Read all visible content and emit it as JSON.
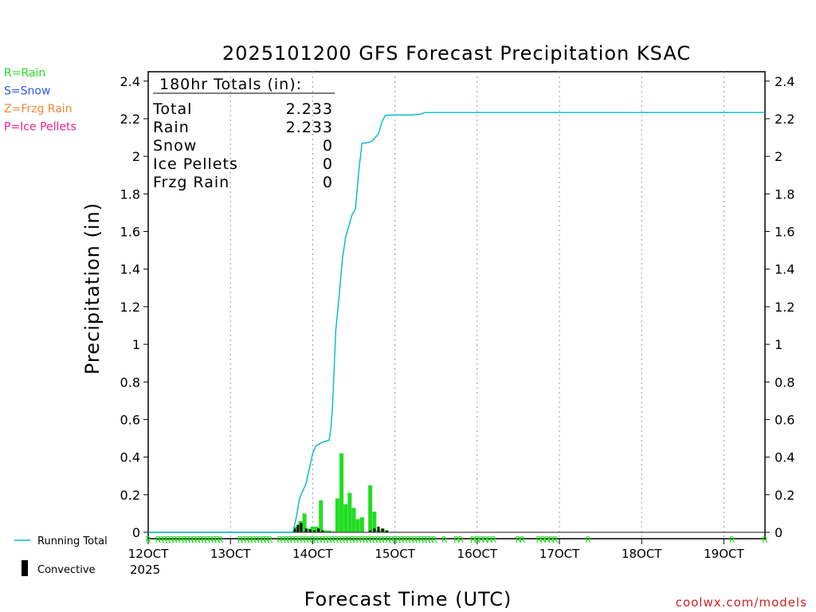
{
  "chart_data": {
    "type": "bar",
    "title": "2025101200 GFS Forecast Precipitation KSAC",
    "xlabel": "Forecast Time (UTC)",
    "ylabel": "Precipitation (in)",
    "ylim": [
      0,
      2.45
    ],
    "xlim": [
      12.0,
      19.5
    ],
    "y_ticks": [
      "0",
      "0.2",
      "0.4",
      "0.6",
      "0.8",
      "1",
      "1.2",
      "1.4",
      "1.6",
      "1.8",
      "2",
      "2.2",
      "2.4"
    ],
    "y_tick_values": [
      0,
      0.2,
      0.4,
      0.6,
      0.8,
      1.0,
      1.2,
      1.4,
      1.6,
      1.8,
      2.0,
      2.2,
      2.4
    ],
    "x_ticks": [
      "12OCT",
      "13OCT",
      "14OCT",
      "15OCT",
      "16OCT",
      "17OCT",
      "18OCT",
      "19OCT"
    ],
    "x_tick_values": [
      12,
      13,
      14,
      15,
      16,
      17,
      18,
      19
    ],
    "year_label": "2025",
    "totals_box": {
      "heading": "180hr Totals (in):",
      "rows": [
        {
          "label": "Total",
          "value": "2.233"
        },
        {
          "label": "Rain",
          "value": "2.233"
        },
        {
          "label": "Snow",
          "value": "0"
        },
        {
          "label": "Ice Pellets",
          "value": "0"
        },
        {
          "label": "Frzg Rain",
          "value": "0"
        }
      ]
    },
    "ptype_legend": [
      {
        "text": "R=Rain",
        "color": "#22dd22"
      },
      {
        "text": "S=Snow",
        "color": "#3355dd"
      },
      {
        "text": "Z=Frzg Rain",
        "color": "#ee8833"
      },
      {
        "text": "P=Ice Pellets",
        "color": "#ee2288"
      }
    ],
    "legend": [
      {
        "name": "Running Total",
        "color": "#00bbcc"
      },
      {
        "name": "Convective",
        "color": "#000000"
      }
    ],
    "watermark": "coolwx.com/models",
    "ptype_marker": "R",
    "ptype_marker_x": [
      12.0,
      12.12,
      12.16,
      12.2,
      12.24,
      12.28,
      12.32,
      12.36,
      12.4,
      12.44,
      12.48,
      12.52,
      12.56,
      12.6,
      12.64,
      12.68,
      12.72,
      12.76,
      12.8,
      12.84,
      12.88,
      13.12,
      13.16,
      13.2,
      13.24,
      13.28,
      13.32,
      13.36,
      13.4,
      13.44,
      13.48,
      13.6,
      13.64,
      13.68,
      13.72,
      13.76,
      13.8,
      13.84,
      13.88,
      13.92,
      13.96,
      14.0,
      14.04,
      14.08,
      14.12,
      14.16,
      14.2,
      14.24,
      14.28,
      14.32,
      14.36,
      14.4,
      14.44,
      14.48,
      14.52,
      14.56,
      14.6,
      14.64,
      14.68,
      14.72,
      14.76,
      14.8,
      14.84,
      14.88,
      14.92,
      14.96,
      15.0,
      15.04,
      15.08,
      15.12,
      15.16,
      15.2,
      15.24,
      15.28,
      15.32,
      15.36,
      15.4,
      15.44,
      15.48,
      15.6,
      15.75,
      15.8,
      15.95,
      16.0,
      16.05,
      16.1,
      16.15,
      16.2,
      16.5,
      16.55,
      16.75,
      16.8,
      16.85,
      16.9,
      16.95,
      17.35,
      19.1,
      19.5
    ],
    "series": [
      {
        "name": "Rain (6-hr bars)",
        "x": [
          13.8,
          13.85,
          13.9,
          13.95,
          14.0,
          14.05,
          14.1,
          14.15,
          14.2,
          14.25,
          14.3,
          14.35,
          14.4,
          14.45,
          14.5,
          14.55,
          14.6,
          14.7,
          14.75,
          14.8,
          14.85,
          14.9
        ],
        "values": [
          0.03,
          0.06,
          0.1,
          0.02,
          0.03,
          0.03,
          0.17,
          0.01,
          0.01,
          0.005,
          0.18,
          0.42,
          0.15,
          0.21,
          0.13,
          0.07,
          0.08,
          0.25,
          0.11,
          0.01,
          0.02,
          0.01
        ]
      },
      {
        "name": "Convective",
        "x": [
          13.78,
          13.82,
          13.86,
          13.92,
          13.97,
          14.02,
          14.07,
          14.12,
          14.7,
          14.75,
          14.8,
          14.85,
          14.9
        ],
        "values": [
          0.02,
          0.04,
          0.05,
          0.02,
          0.015,
          0.01,
          0.02,
          0.01,
          0.01,
          0.02,
          0.03,
          0.02,
          0.01
        ]
      },
      {
        "name": "Running Total",
        "x": [
          12.0,
          13.76,
          13.8,
          13.84,
          13.88,
          13.92,
          13.96,
          14.0,
          14.04,
          14.12,
          14.2,
          14.22,
          14.24,
          14.28,
          14.32,
          14.36,
          14.4,
          14.44,
          14.48,
          14.52,
          14.56,
          14.6,
          14.64,
          14.72,
          14.8,
          14.84,
          14.88,
          14.92,
          14.96,
          15.0,
          15.2,
          15.32,
          15.36,
          19.5
        ],
        "values": [
          0.0,
          0.0,
          0.08,
          0.18,
          0.22,
          0.26,
          0.34,
          0.42,
          0.46,
          0.48,
          0.49,
          0.55,
          0.66,
          1.07,
          1.25,
          1.45,
          1.57,
          1.63,
          1.69,
          1.72,
          1.92,
          2.07,
          2.07,
          2.08,
          2.12,
          2.18,
          2.215,
          2.22,
          2.22,
          2.22,
          2.22,
          2.225,
          2.233,
          2.233
        ]
      }
    ]
  }
}
